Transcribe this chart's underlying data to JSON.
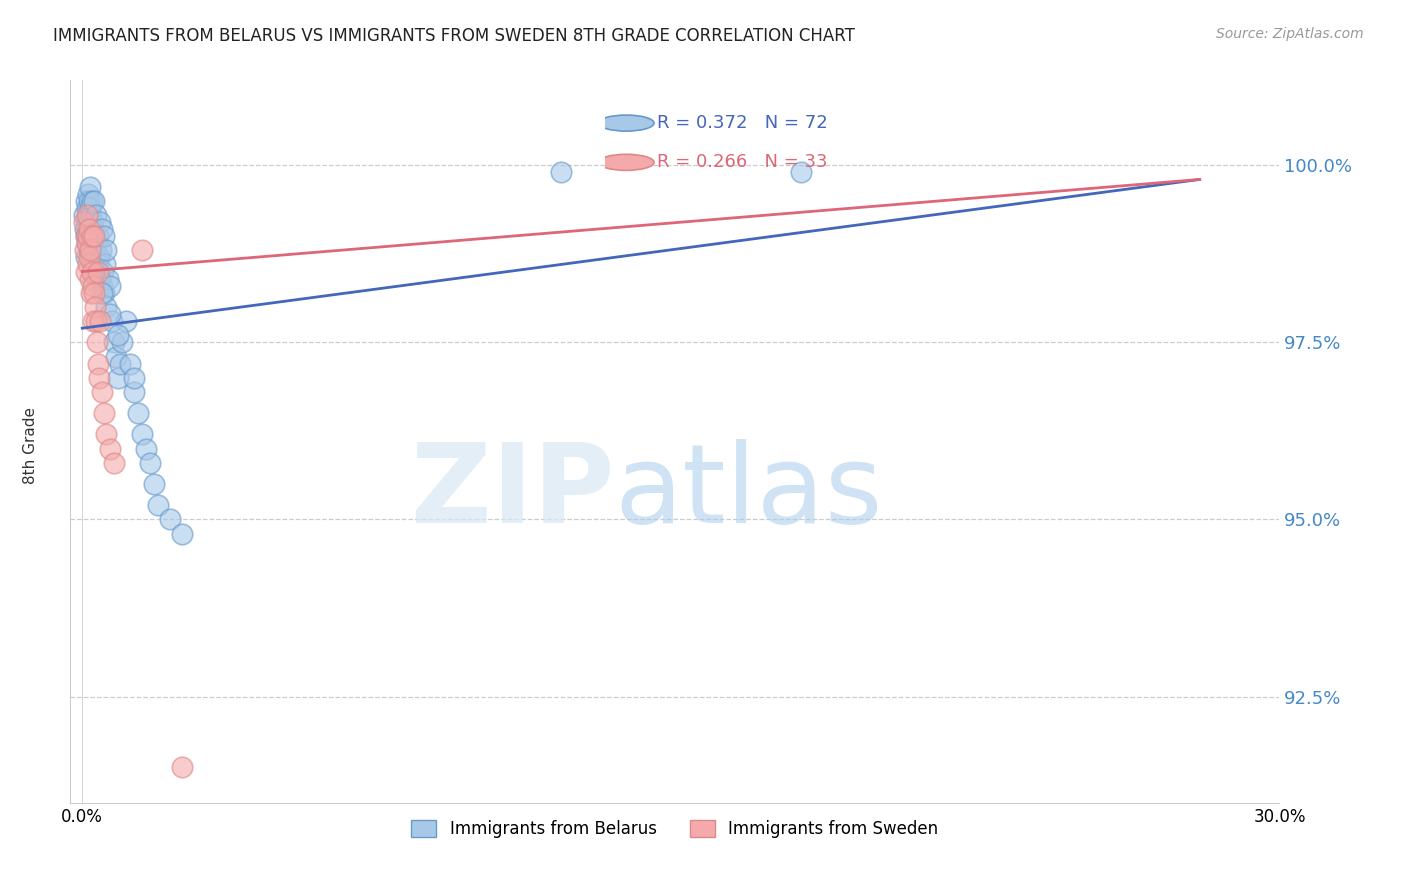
{
  "title": "IMMIGRANTS FROM BELARUS VS IMMIGRANTS FROM SWEDEN 8TH GRADE CORRELATION CHART",
  "source": "Source: ZipAtlas.com",
  "ylabel_label": "8th Grade",
  "xlim": [
    -0.3,
    30.0
  ],
  "ylim": [
    91.0,
    101.2
  ],
  "yticks": [
    92.5,
    95.0,
    97.5,
    100.0
  ],
  "ytick_labels": [
    "92.5%",
    "95.0%",
    "97.5%",
    "100.0%"
  ],
  "belarus_color_face": "#A8C8E8",
  "belarus_color_edge": "#6699CC",
  "sweden_color_face": "#F4AAAA",
  "sweden_color_edge": "#DD8888",
  "belarus_trend_color": "#4466BB",
  "sweden_trend_color": "#DD6677",
  "belarus_R": 0.372,
  "belarus_N": 72,
  "sweden_R": 0.266,
  "sweden_N": 33,
  "legend_label_belarus": "Immigrants from Belarus",
  "legend_label_sweden": "Immigrants from Sweden",
  "belarus_x": [
    0.05,
    0.08,
    0.1,
    0.1,
    0.1,
    0.12,
    0.12,
    0.13,
    0.15,
    0.15,
    0.15,
    0.17,
    0.18,
    0.18,
    0.19,
    0.2,
    0.2,
    0.2,
    0.22,
    0.22,
    0.23,
    0.25,
    0.25,
    0.27,
    0.28,
    0.28,
    0.3,
    0.3,
    0.33,
    0.35,
    0.35,
    0.38,
    0.4,
    0.4,
    0.43,
    0.45,
    0.45,
    0.48,
    0.5,
    0.5,
    0.53,
    0.55,
    0.55,
    0.58,
    0.6,
    0.6,
    0.65,
    0.7,
    0.75,
    0.8,
    0.85,
    0.9,
    0.95,
    1.0,
    1.1,
    1.2,
    1.3,
    1.4,
    1.5,
    1.6,
    1.7,
    1.8,
    1.9,
    2.2,
    2.5,
    0.3,
    0.5,
    0.7,
    0.9,
    1.3,
    12.0,
    18.0
  ],
  "belarus_y": [
    99.3,
    99.1,
    99.5,
    99.0,
    98.7,
    99.2,
    98.9,
    99.4,
    99.6,
    99.3,
    99.0,
    99.5,
    99.2,
    98.8,
    99.1,
    99.7,
    99.4,
    99.0,
    99.3,
    98.7,
    99.0,
    99.5,
    99.2,
    98.9,
    99.1,
    98.6,
    99.5,
    99.0,
    98.8,
    99.3,
    98.5,
    98.9,
    99.0,
    98.6,
    98.7,
    99.2,
    98.4,
    98.8,
    99.1,
    98.3,
    98.5,
    99.0,
    98.2,
    98.6,
    98.8,
    98.0,
    98.4,
    98.3,
    97.8,
    97.5,
    97.3,
    97.0,
    97.2,
    97.5,
    97.8,
    97.2,
    96.8,
    96.5,
    96.2,
    96.0,
    95.8,
    95.5,
    95.2,
    95.0,
    94.8,
    98.5,
    98.2,
    97.9,
    97.6,
    97.0,
    99.9,
    99.9
  ],
  "sweden_x": [
    0.05,
    0.08,
    0.1,
    0.1,
    0.12,
    0.13,
    0.15,
    0.15,
    0.18,
    0.18,
    0.2,
    0.2,
    0.22,
    0.25,
    0.25,
    0.28,
    0.28,
    0.3,
    0.3,
    0.33,
    0.35,
    0.38,
    0.4,
    0.4,
    0.43,
    0.45,
    0.5,
    0.55,
    0.6,
    0.7,
    0.8,
    1.5,
    2.5
  ],
  "sweden_y": [
    99.2,
    98.8,
    99.0,
    98.5,
    98.9,
    99.3,
    99.0,
    98.6,
    98.7,
    99.1,
    98.4,
    98.8,
    98.2,
    99.0,
    98.5,
    98.3,
    97.8,
    99.0,
    98.2,
    98.0,
    97.8,
    97.5,
    98.5,
    97.2,
    97.0,
    97.8,
    96.8,
    96.5,
    96.2,
    96.0,
    95.8,
    98.8,
    91.5
  ],
  "trend_x_start": 0.0,
  "trend_x_end": 28.0,
  "belarus_trend_y_at_0": 97.7,
  "belarus_trend_y_at_28": 99.8,
  "sweden_trend_y_at_0": 98.5,
  "sweden_trend_y_at_28": 99.8
}
